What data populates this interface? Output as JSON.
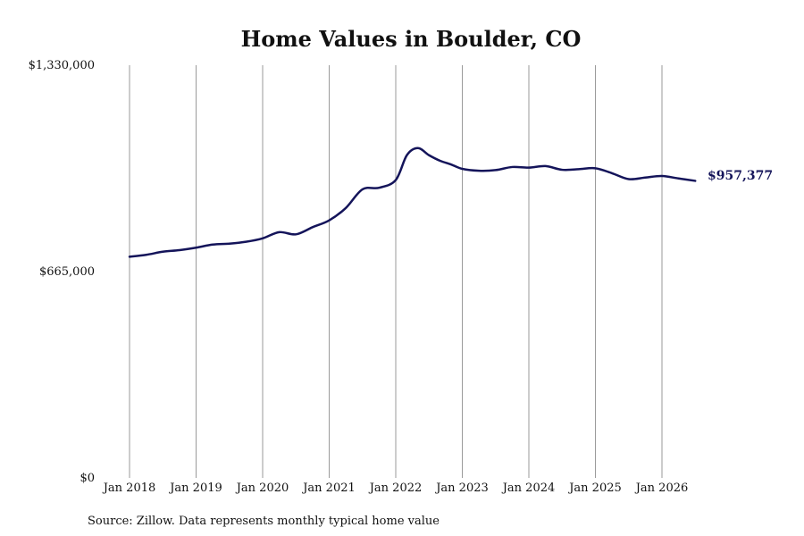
{
  "chart_data": {
    "type": "line",
    "title": "Home Values in Boulder, CO",
    "xlabel": "",
    "ylabel": "",
    "x_tick_labels": [
      "Jan 2018",
      "Jan 2019",
      "Jan 2020",
      "Jan 2021",
      "Jan 2022",
      "Jan 2023",
      "Jan 2024",
      "Jan 2025",
      "Jan 2026"
    ],
    "y_tick_labels": [
      "$1,330,000",
      "$665,000",
      "$0"
    ],
    "y_ticks": [
      1330000,
      665000,
      0
    ],
    "ylim": [
      0,
      1330000
    ],
    "xlim": [
      "2018-01",
      "2026-07"
    ],
    "grid": "vertical",
    "legend": "none",
    "line_color": "#14145a",
    "end_label": "$957,377",
    "source_note": "Source: Zillow. Data represents monthly typical home value",
    "series": [
      {
        "x": [
          "2018-01",
          "2018-04",
          "2018-07",
          "2018-10",
          "2019-01",
          "2019-04",
          "2019-07",
          "2019-10",
          "2020-01",
          "2020-04",
          "2020-07",
          "2020-10",
          "2021-01",
          "2021-04",
          "2021-07",
          "2021-10",
          "2022-01",
          "2022-03",
          "2022-05",
          "2022-07",
          "2022-09",
          "2022-11",
          "2023-01",
          "2023-04",
          "2023-07",
          "2023-10",
          "2024-01",
          "2024-04",
          "2024-07",
          "2024-10",
          "2025-01",
          "2025-04",
          "2025-07",
          "2025-10",
          "2026-01",
          "2026-04",
          "2026-07"
        ],
        "values": [
          713000,
          719000,
          729000,
          734000,
          742000,
          752000,
          755000,
          761000,
          772000,
          792000,
          785000,
          808000,
          830000,
          870000,
          930000,
          935000,
          960000,
          1040000,
          1063000,
          1040000,
          1022000,
          1010000,
          996000,
          990000,
          992000,
          1002000,
          1000000,
          1005000,
          993000,
          995000,
          998000,
          982000,
          963000,
          968000,
          973000,
          965000,
          957377
        ]
      }
    ]
  }
}
